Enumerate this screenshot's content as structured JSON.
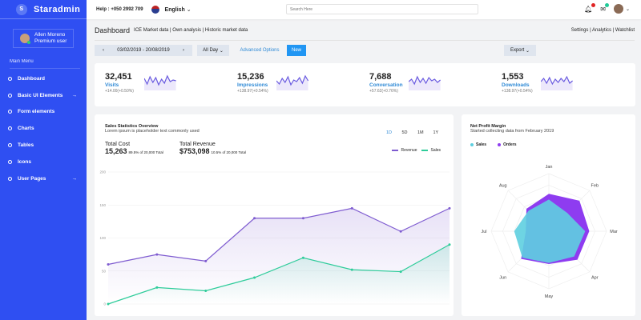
{
  "brand": {
    "name": "Staradmin",
    "logo_letter": "S"
  },
  "user": {
    "name": "Allen Moreno",
    "role": "Premium user"
  },
  "sidebar": {
    "menu_title": "Main Menu",
    "items": [
      {
        "label": "Dashboard",
        "arrow": ""
      },
      {
        "label": "Basic UI Elements",
        "arrow": "→"
      },
      {
        "label": "Form elements",
        "arrow": ""
      },
      {
        "label": "Charts",
        "arrow": ""
      },
      {
        "label": "Tables",
        "arrow": ""
      },
      {
        "label": "Icons",
        "arrow": ""
      },
      {
        "label": "User Pages",
        "arrow": "→"
      }
    ]
  },
  "topbar": {
    "help": "Help : +050 2992 709",
    "language": "English",
    "search_placeholder": "Search Here",
    "notifications_color": "#e02424",
    "messages_color": "#20c997"
  },
  "subheader": {
    "title": "Dashboard",
    "links": "ICE Market data  |  Own analysis  |  Historic market data",
    "right_links": "Settings  |  Analytics  |  Watchlist"
  },
  "toolbar": {
    "date_range": "03/02/2019 - 20/08/2019",
    "period": "All Day",
    "advanced": "Advanced Options",
    "new": "New",
    "export": "Export"
  },
  "stats": [
    {
      "value": "32,451",
      "label": "Visits",
      "change": "+14.00(+0.50%)"
    },
    {
      "value": "15,236",
      "label": "Impressions",
      "change": "+138.97(+0.54%)"
    },
    {
      "value": "7,688",
      "label": "Conversation",
      "change": "+57.62(+0.76%)"
    },
    {
      "value": "1,553",
      "label": "Downloads",
      "change": "+138.97(+0.54%)"
    }
  ],
  "sales": {
    "title": "Sales Statistics Overview",
    "subtitle": "Lorem ipsum is placeholder text commonly used",
    "ranges": [
      "1D",
      "5D",
      "1M",
      "1Y"
    ],
    "active_range": "1D",
    "cost_label": "Total Cost",
    "cost_value": "15,263",
    "cost_note": "89.5% of 20,000 Total",
    "revenue_label": "Total Revenue",
    "revenue_value": "$753,098",
    "revenue_note": "10.5% of 20,000 Total"
  },
  "chart_data": [
    {
      "type": "line",
      "x": [
        1,
        2,
        3,
        4,
        5,
        6,
        7,
        8
      ],
      "ylim": [
        0,
        200
      ],
      "yticks": [
        0,
        50,
        100,
        150,
        200
      ],
      "grid": true,
      "legend": "top-right",
      "series": [
        {
          "name": "Revenue",
          "color": "#7e5bd0",
          "values": [
            60,
            75,
            65,
            130,
            130,
            145,
            110,
            145
          ]
        },
        {
          "name": "Sales",
          "color": "#2ecc9a",
          "values": [
            0,
            25,
            20,
            40,
            70,
            52,
            49,
            90
          ]
        }
      ]
    },
    {
      "type": "radar",
      "title": "Net Profit Margin",
      "subtitle": "Started collecting data from February 2019",
      "categories": [
        "Jan",
        "Feb",
        "Mar",
        "Apr",
        "May",
        "Jun",
        "Jul",
        "Aug"
      ],
      "legend": "top-left",
      "series": [
        {
          "name": "Sales",
          "color": "#5ecfe0",
          "values": [
            55,
            45,
            63,
            62,
            55,
            65,
            60,
            50
          ]
        },
        {
          "name": "Orders",
          "color": "#8e3cf0",
          "values": [
            65,
            75,
            70,
            70,
            57,
            68,
            40,
            55
          ]
        }
      ]
    }
  ]
}
